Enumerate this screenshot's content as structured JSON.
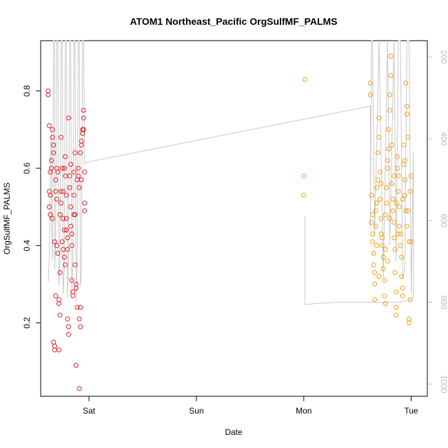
{
  "chart_data": {
    "type": "scatter",
    "title": "ATOM1 Northeast_Pacific OrgSulfMF_PALMS",
    "xlabel": "Date",
    "ylabel": "OrgSulfMF_PALMS",
    "x_ticks": [
      {
        "label": "Sat",
        "value": 1.0
      },
      {
        "label": "Sun",
        "value": 2.0
      },
      {
        "label": "Mon",
        "value": 3.0
      },
      {
        "label": "Tue",
        "value": 4.0
      }
    ],
    "xlim": [
      0.55,
      4.15
    ],
    "ylim": [
      0.01,
      0.93
    ],
    "y_ticks": [
      0.2,
      0.4,
      0.6,
      0.8
    ],
    "y2_ticks": [
      200,
      400,
      600,
      800,
      1000
    ],
    "y2lim": [
      1030,
      160
    ],
    "colors": {
      "series1": "#e41a1c",
      "series2": "#f39c12",
      "altitude": "#c8c8c8"
    },
    "grid": false,
    "series": [
      {
        "color": "#e41a1c",
        "points": [
          [
            0.62,
            0.8
          ],
          [
            0.62,
            0.79
          ],
          [
            0.63,
            0.71
          ],
          [
            0.63,
            0.54
          ],
          [
            0.63,
            0.5
          ],
          [
            0.64,
            0.48
          ],
          [
            0.64,
            0.53
          ],
          [
            0.65,
            0.62
          ],
          [
            0.65,
            0.6
          ],
          [
            0.66,
            0.7
          ],
          [
            0.66,
            0.68
          ],
          [
            0.67,
            0.66
          ],
          [
            0.67,
            0.64
          ],
          [
            0.67,
            0.15
          ],
          [
            0.68,
            0.14
          ],
          [
            0.68,
            0.13
          ],
          [
            0.68,
            0.41
          ],
          [
            0.69,
            0.54
          ],
          [
            0.69,
            0.57
          ],
          [
            0.7,
            0.6
          ],
          [
            0.7,
            0.52
          ],
          [
            0.71,
            0.59
          ],
          [
            0.71,
            0.38
          ],
          [
            0.72,
            0.25
          ],
          [
            0.72,
            0.26
          ],
          [
            0.72,
            0.13
          ],
          [
            0.73,
            0.33
          ],
          [
            0.73,
            0.48
          ],
          [
            0.74,
            0.51
          ],
          [
            0.74,
            0.54
          ],
          [
            0.74,
            0.68
          ],
          [
            0.75,
            0.6
          ],
          [
            0.75,
            0.41
          ],
          [
            0.76,
            0.47
          ],
          [
            0.76,
            0.39
          ],
          [
            0.77,
            0.37
          ],
          [
            0.77,
            0.44
          ],
          [
            0.77,
            0.6
          ],
          [
            0.78,
            0.63
          ],
          [
            0.78,
            0.58
          ],
          [
            0.79,
            0.53
          ],
          [
            0.79,
            0.47
          ],
          [
            0.8,
            0.42
          ],
          [
            0.8,
            0.39
          ],
          [
            0.8,
            0.21
          ],
          [
            0.81,
            0.19
          ],
          [
            0.81,
            0.17
          ],
          [
            0.81,
            0.73
          ],
          [
            0.82,
            0.58
          ],
          [
            0.82,
            0.55
          ],
          [
            0.83,
            0.5
          ],
          [
            0.83,
            0.45
          ],
          [
            0.84,
            0.43
          ],
          [
            0.84,
            0.4
          ],
          [
            0.84,
            0.31
          ],
          [
            0.85,
            0.28
          ],
          [
            0.85,
            0.27
          ],
          [
            0.86,
            0.48
          ],
          [
            0.86,
            0.53
          ],
          [
            0.86,
            0.59
          ],
          [
            0.87,
            0.64
          ],
          [
            0.87,
            0.35
          ],
          [
            0.88,
            0.3
          ],
          [
            0.88,
            0.29
          ],
          [
            0.88,
            0.09
          ],
          [
            0.89,
            0.24
          ],
          [
            0.89,
            0.57
          ],
          [
            0.9,
            0.6
          ],
          [
            0.9,
            0.58
          ],
          [
            0.91,
            0.55
          ],
          [
            0.91,
            0.03
          ],
          [
            0.91,
            0.21
          ],
          [
            0.92,
            0.19
          ],
          [
            0.92,
            0.24
          ],
          [
            0.92,
            0.64
          ],
          [
            0.93,
            0.66
          ],
          [
            0.93,
            0.67
          ],
          [
            0.94,
            0.69
          ],
          [
            0.94,
            0.7
          ],
          [
            0.95,
            0.73
          ],
          [
            0.95,
            0.75
          ],
          [
            0.95,
            0.7
          ],
          [
            0.96,
            0.51
          ],
          [
            0.96,
            0.49
          ],
          [
            0.96,
            0.59
          ],
          [
            0.66,
            0.47
          ],
          [
            0.7,
            0.4
          ],
          [
            0.76,
            0.54
          ],
          [
            0.78,
            0.35
          ],
          [
            0.83,
            0.61
          ],
          [
            0.87,
            0.48
          ],
          [
            0.93,
            0.57
          ],
          [
            0.64,
            0.59
          ],
          [
            0.69,
            0.27
          ],
          [
            0.73,
            0.22
          ],
          [
            0.79,
            0.44
          ]
        ]
      },
      {
        "color": "#f39c12",
        "points": [
          [
            3.01,
            0.83
          ],
          [
            3.0,
            0.58
          ],
          [
            3.0,
            0.53
          ],
          [
            3.62,
            0.82
          ],
          [
            3.62,
            0.79
          ],
          [
            3.63,
            0.53
          ],
          [
            3.63,
            0.46
          ],
          [
            3.64,
            0.43
          ],
          [
            3.64,
            0.41
          ],
          [
            3.65,
            0.38
          ],
          [
            3.65,
            0.35
          ],
          [
            3.66,
            0.33
          ],
          [
            3.66,
            0.3
          ],
          [
            3.66,
            0.26
          ],
          [
            3.67,
            0.45
          ],
          [
            3.67,
            0.49
          ],
          [
            3.68,
            0.51
          ],
          [
            3.68,
            0.55
          ],
          [
            3.69,
            0.57
          ],
          [
            3.69,
            0.64
          ],
          [
            3.7,
            0.68
          ],
          [
            3.7,
            0.73
          ],
          [
            3.71,
            0.59
          ],
          [
            3.71,
            0.52
          ],
          [
            3.72,
            0.47
          ],
          [
            3.72,
            0.43
          ],
          [
            3.73,
            0.42
          ],
          [
            3.73,
            0.4
          ],
          [
            3.74,
            0.37
          ],
          [
            3.74,
            0.34
          ],
          [
            3.75,
            0.31
          ],
          [
            3.75,
            0.27
          ],
          [
            3.76,
            0.25
          ],
          [
            3.76,
            0.48
          ],
          [
            3.77,
            0.51
          ],
          [
            3.77,
            0.55
          ],
          [
            3.78,
            0.6
          ],
          [
            3.78,
            0.62
          ],
          [
            3.79,
            0.65
          ],
          [
            3.79,
            0.7
          ],
          [
            3.8,
            0.75
          ],
          [
            3.8,
            0.79
          ],
          [
            3.81,
            0.84
          ],
          [
            3.81,
            0.89
          ],
          [
            3.82,
            0.66
          ],
          [
            3.82,
            0.56
          ],
          [
            3.83,
            0.52
          ],
          [
            3.83,
            0.49
          ],
          [
            3.84,
            0.46
          ],
          [
            3.84,
            0.42
          ],
          [
            3.85,
            0.39
          ],
          [
            3.85,
            0.33
          ],
          [
            3.86,
            0.28
          ],
          [
            3.86,
            0.22
          ],
          [
            3.86,
            0.24
          ],
          [
            3.87,
            0.6
          ],
          [
            3.87,
            0.63
          ],
          [
            3.88,
            0.58
          ],
          [
            3.88,
            0.54
          ],
          [
            3.89,
            0.5
          ],
          [
            3.89,
            0.45
          ],
          [
            3.9,
            0.43
          ],
          [
            3.9,
            0.4
          ],
          [
            3.91,
            0.37
          ],
          [
            3.91,
            0.32
          ],
          [
            3.92,
            0.27
          ],
          [
            3.92,
            0.29
          ],
          [
            3.93,
            0.66
          ],
          [
            3.93,
            0.61
          ],
          [
            3.94,
            0.57
          ],
          [
            3.94,
            0.53
          ],
          [
            3.95,
            0.49
          ],
          [
            3.95,
            0.82
          ],
          [
            3.96,
            0.76
          ],
          [
            3.96,
            0.74
          ],
          [
            3.97,
            0.68
          ],
          [
            3.97,
            0.49
          ],
          [
            3.98,
            0.41
          ],
          [
            3.98,
            0.21
          ],
          [
            3.98,
            0.2
          ],
          [
            3.99,
            0.26
          ],
          [
            3.99,
            0.54
          ],
          [
            4.0,
            0.58
          ],
          [
            4.0,
            0.41
          ],
          [
            3.64,
            0.48
          ],
          [
            3.68,
            0.4
          ],
          [
            3.72,
            0.56
          ],
          [
            3.76,
            0.39
          ],
          [
            3.8,
            0.47
          ],
          [
            3.84,
            0.58
          ],
          [
            3.88,
            0.43
          ],
          [
            3.92,
            0.52
          ],
          [
            3.96,
            0.45
          ],
          [
            3.7,
            0.32
          ],
          [
            3.78,
            0.36
          ],
          [
            3.86,
            0.51
          ],
          [
            3.94,
            0.62
          ]
        ]
      }
    ],
    "altitude_path": [
      [
        0.62,
        750
      ],
      [
        0.63,
        690
      ],
      [
        0.64,
        450
      ],
      [
        0.65,
        380
      ],
      [
        0.65,
        600
      ],
      [
        0.66,
        700
      ],
      [
        0.67,
        160
      ],
      [
        0.68,
        160
      ],
      [
        0.68,
        720
      ],
      [
        0.69,
        650
      ],
      [
        0.7,
        160
      ],
      [
        0.71,
        160
      ],
      [
        0.72,
        760
      ],
      [
        0.73,
        700
      ],
      [
        0.74,
        160
      ],
      [
        0.75,
        160
      ],
      [
        0.76,
        780
      ],
      [
        0.77,
        720
      ],
      [
        0.78,
        160
      ],
      [
        0.79,
        160
      ],
      [
        0.8,
        790
      ],
      [
        0.81,
        700
      ],
      [
        0.82,
        160
      ],
      [
        0.83,
        160
      ],
      [
        0.84,
        780
      ],
      [
        0.85,
        700
      ],
      [
        0.86,
        160
      ],
      [
        0.87,
        160
      ],
      [
        0.88,
        800
      ],
      [
        0.89,
        700
      ],
      [
        0.9,
        160
      ],
      [
        0.91,
        160
      ],
      [
        0.92,
        760
      ],
      [
        0.93,
        730
      ],
      [
        0.94,
        160
      ],
      [
        0.95,
        160
      ],
      [
        0.96,
        460
      ],
      [
        1.02,
        455
      ],
      [
        3.62,
        320
      ],
      [
        3.62,
        620
      ],
      [
        3.63,
        160
      ],
      [
        3.64,
        160
      ],
      [
        3.66,
        640
      ],
      [
        3.7,
        160
      ],
      [
        3.74,
        740
      ],
      [
        3.78,
        160
      ],
      [
        3.8,
        660
      ],
      [
        3.84,
        160
      ],
      [
        3.86,
        700
      ],
      [
        3.88,
        160
      ],
      [
        3.9,
        160
      ],
      [
        3.92,
        740
      ],
      [
        3.94,
        720
      ],
      [
        3.96,
        160
      ],
      [
        3.98,
        160
      ],
      [
        4.0,
        780
      ],
      [
        4.02,
        430
      ],
      [
        4.02,
        790
      ],
      [
        3.9,
        800
      ],
      [
        3.3,
        800
      ],
      [
        3.01,
        805
      ],
      [
        3.01,
        590
      ]
    ]
  }
}
